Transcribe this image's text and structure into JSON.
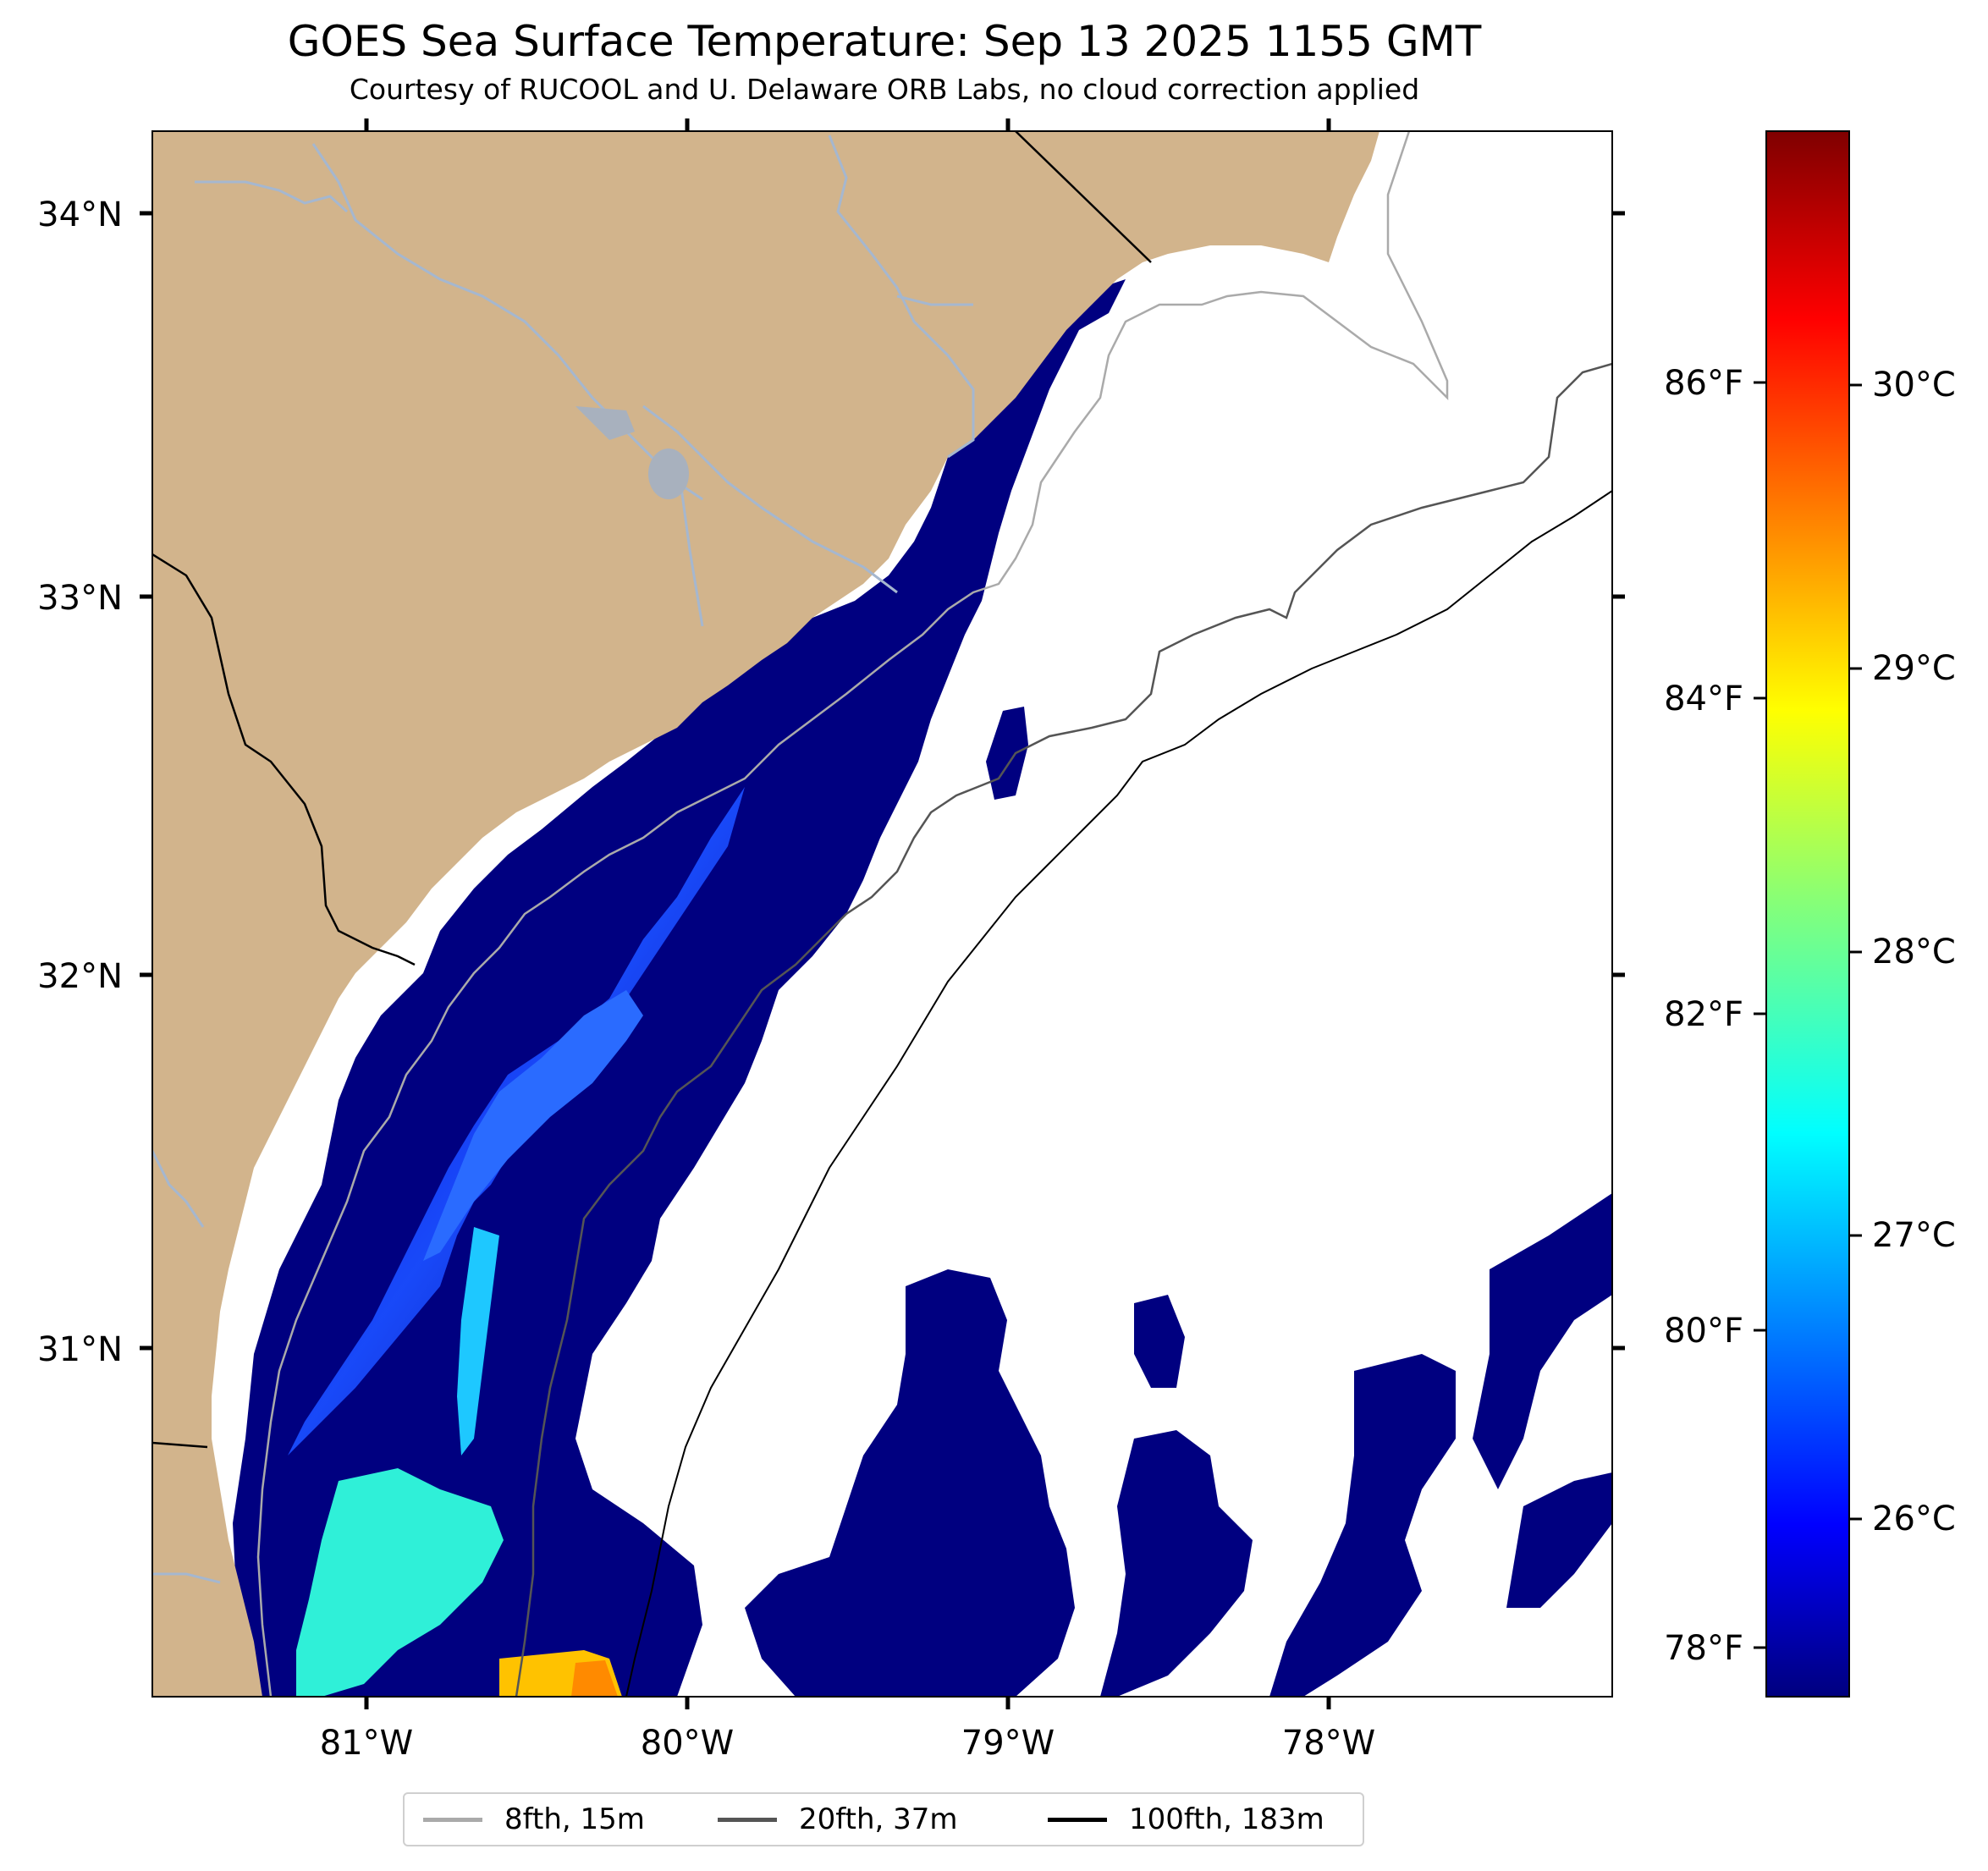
{
  "title": "GOES Sea Surface Temperature: Sep 13 2025 1155 GMT",
  "subtitle": "Courtesy of RUCOOL and U. Delaware ORB Labs, no cloud correction applied",
  "axes": {
    "lat_labels": [
      "34°N",
      "33°N",
      "32°N",
      "31°N"
    ],
    "lon_labels": [
      "81°W",
      "80°W",
      "79°W",
      "78°W"
    ]
  },
  "colorbar": {
    "colormap": "jet",
    "celsius_labels": [
      "30°C",
      "29°C",
      "28°C",
      "27°C",
      "26°C"
    ],
    "fahrenheit_labels": [
      "86°F",
      "84°F",
      "82°F",
      "80°F",
      "78°F"
    ]
  },
  "legend": [
    {
      "label": "8fth, 15m",
      "color": "#aaaaaa"
    },
    {
      "label": "20fth, 37m",
      "color": "#555555"
    },
    {
      "label": "100fth, 183m",
      "color": "#000000"
    }
  ],
  "colors": {
    "land": "#d2b48c",
    "rivers": "#a5b7cf",
    "no_data": "#ffffff",
    "sst_min": "#000080"
  }
}
